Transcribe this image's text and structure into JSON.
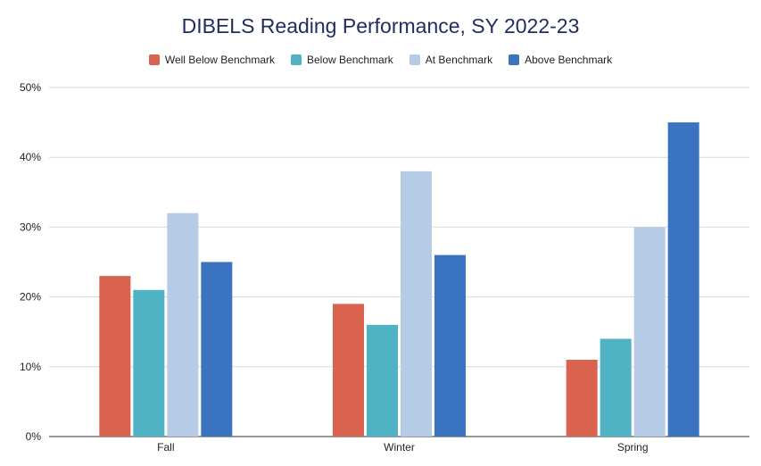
{
  "chart_data": {
    "type": "bar",
    "title": "DIBELS Reading Performance, SY 2022-23",
    "categories": [
      "Fall",
      "Winter",
      "Spring"
    ],
    "series": [
      {
        "name": "Well Below Benchmark",
        "color": "#d9634f",
        "values": [
          23,
          19,
          11
        ]
      },
      {
        "name": "Below Benchmark",
        "color": "#4fb3c4",
        "values": [
          21,
          16,
          14
        ]
      },
      {
        "name": "At Benchmark",
        "color": "#b6cbe6",
        "values": [
          32,
          38,
          30
        ]
      },
      {
        "name": "Above Benchmark",
        "color": "#3a73c0",
        "values": [
          25,
          26,
          45
        ]
      }
    ],
    "yticks": [
      "0%",
      "10%",
      "20%",
      "30%",
      "40%",
      "50%"
    ],
    "ylim": [
      0,
      50
    ],
    "grid": true,
    "legend_position": "top"
  }
}
